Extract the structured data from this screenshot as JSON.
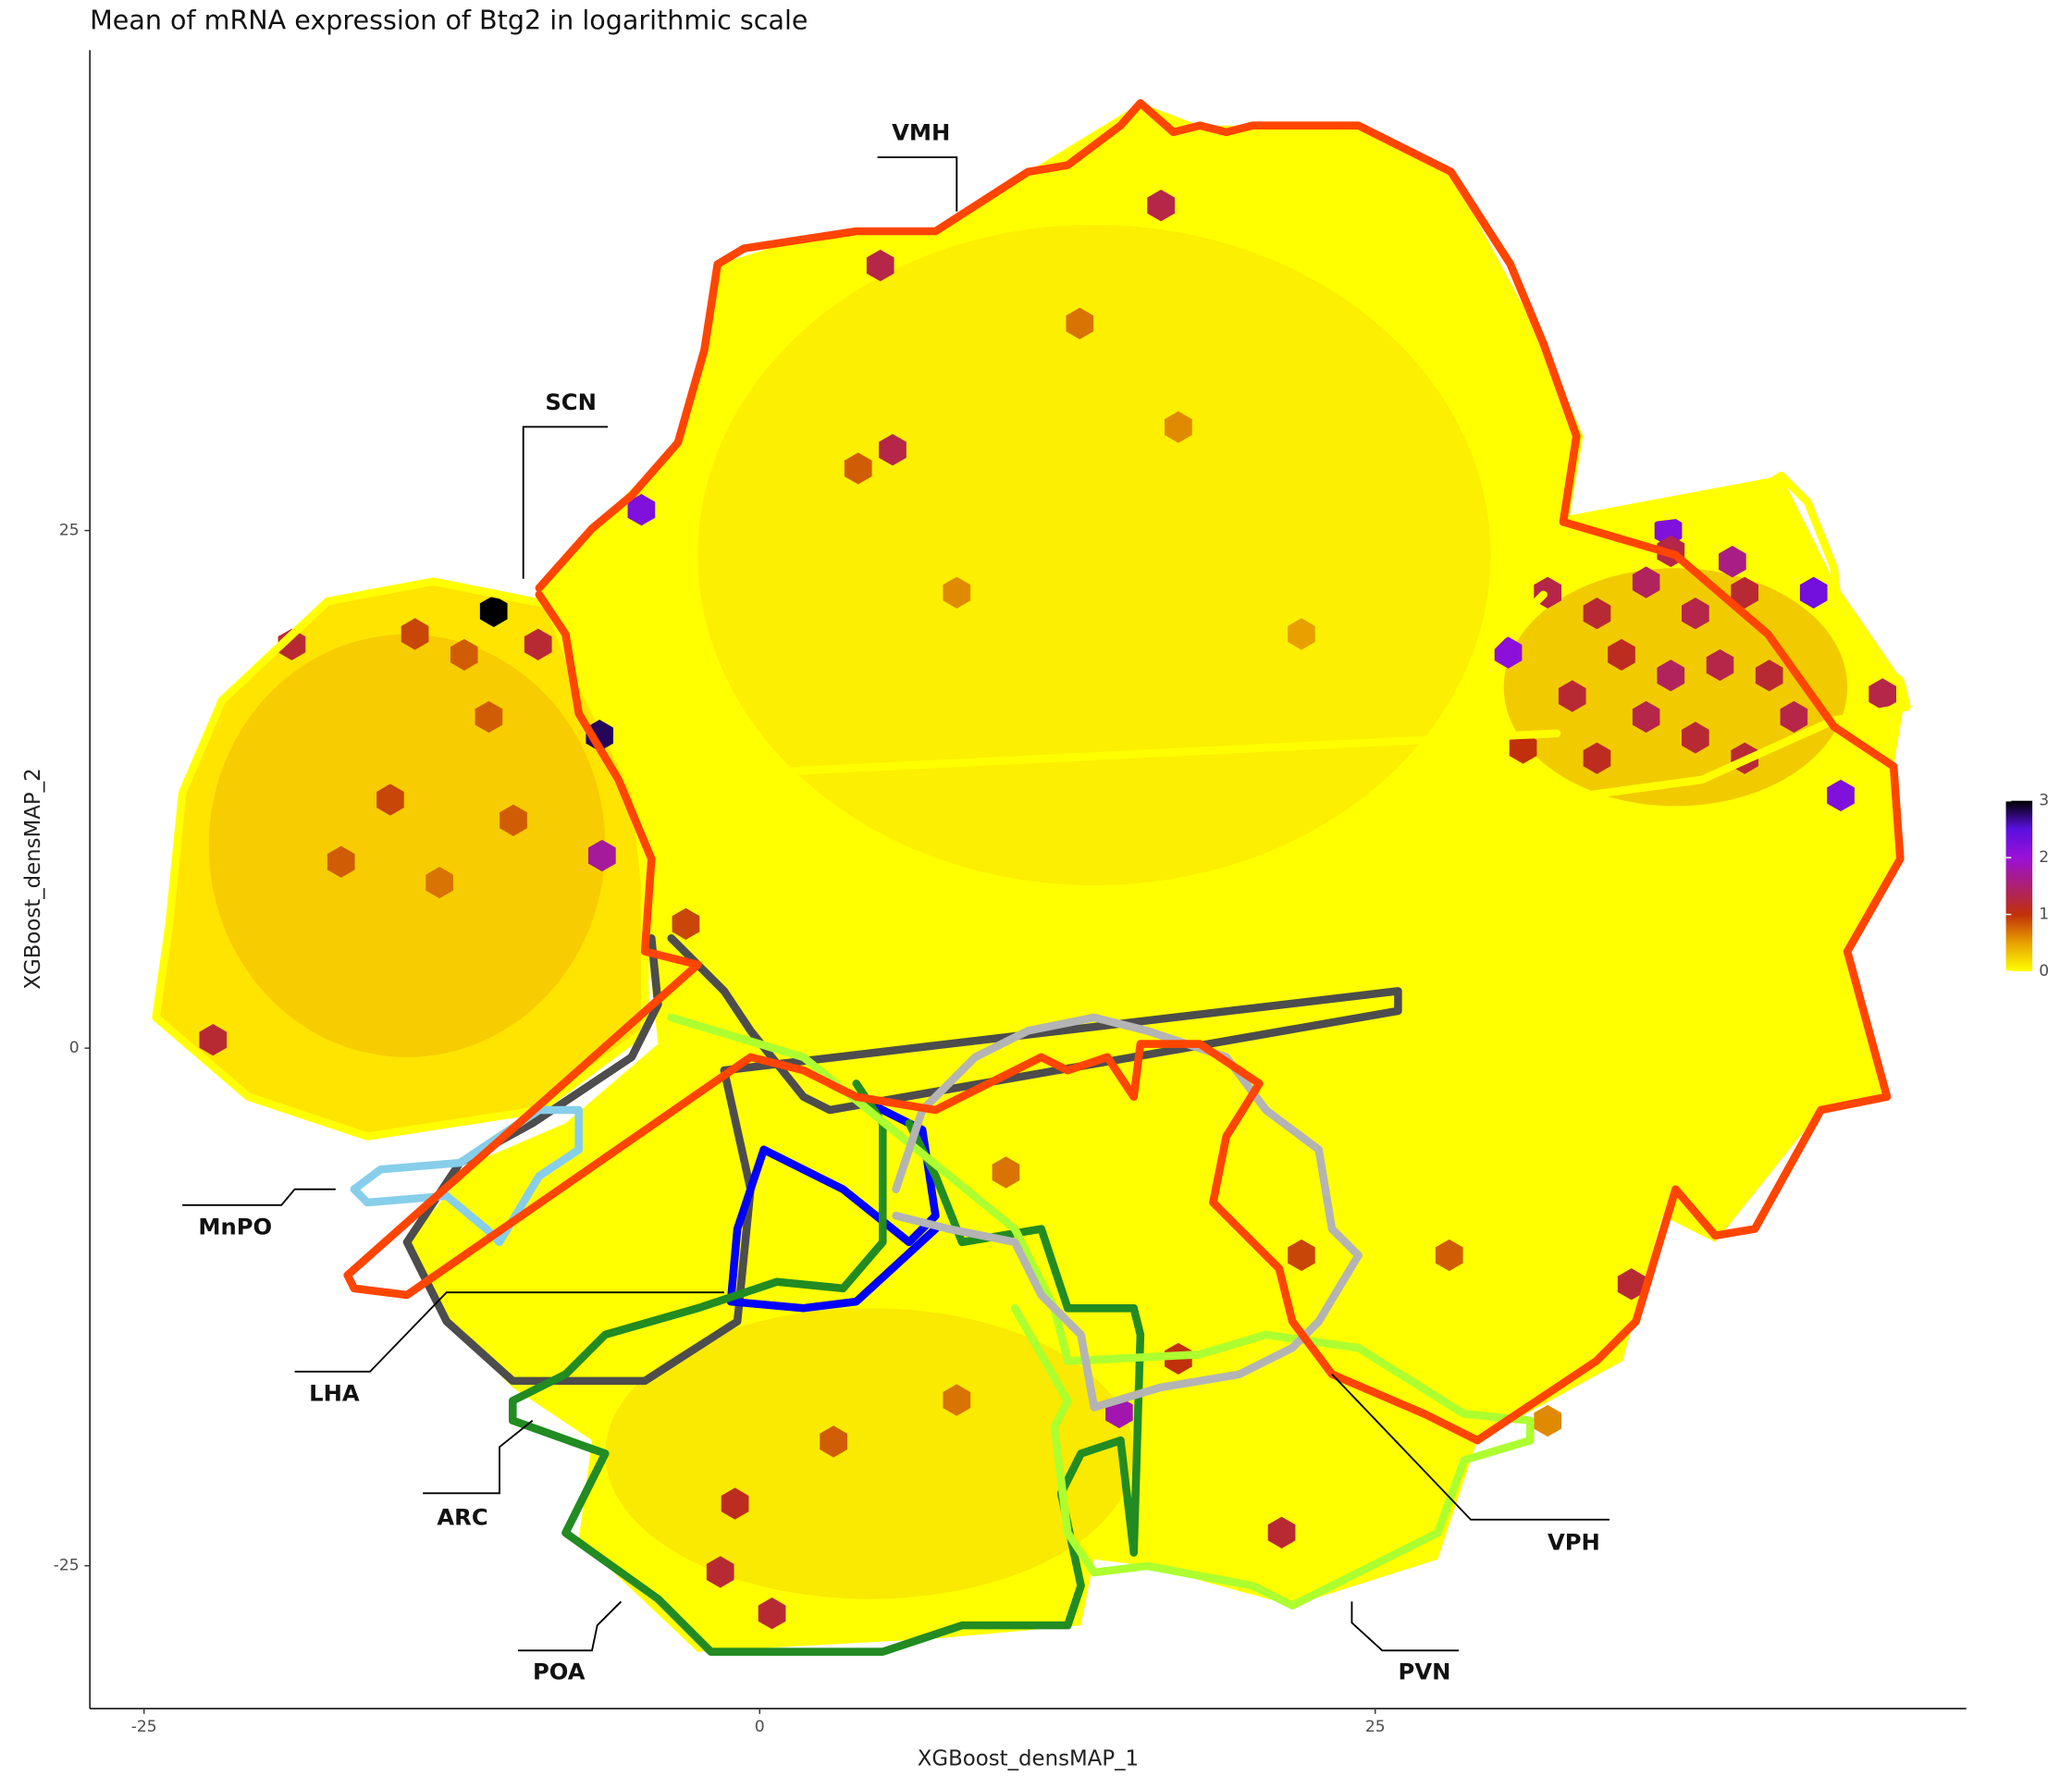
{
  "chart_data": {
    "type": "hexbin",
    "title": "Mean of mRNA expression of Btg2 in logarithmic scale",
    "x_label": "XGBoost_densMAP_1",
    "y_label": "XGBoost_densMAP_2",
    "xlim": [
      -27.2,
      49.0
    ],
    "ylim": [
      -31.9,
      48.2
    ],
    "xticks": [
      -25,
      0,
      25
    ],
    "yticks": [
      -25,
      0,
      25
    ],
    "clim": [
      0,
      3
    ],
    "colorbar_ticks": [
      0,
      1,
      2,
      3
    ],
    "color_stops": [
      {
        "value": 0,
        "color": "#ffff00"
      },
      {
        "value": 0.5,
        "color": "#e8a000"
      },
      {
        "value": 1,
        "color": "#c0300a"
      },
      {
        "value": 2,
        "color": "#9a10d8"
      },
      {
        "value": 2.5,
        "color": "#5a10e0"
      },
      {
        "value": 3,
        "color": "#000000"
      }
    ],
    "regions": [
      "VMH",
      "SCN",
      "MnPO",
      "LHA",
      "ARC",
      "POA",
      "PVN",
      "VPH"
    ],
    "x": [
      -10.8,
      -4.8,
      36.9,
      42.8,
      30.4,
      43.9,
      -6.4,
      -6.5,
      16.3,
      4.9,
      5.4,
      -22.2,
      45.6,
      35.4,
      21.2,
      -1.6,
      0.5,
      14.6,
      32,
      34,
      36,
      38,
      40,
      35,
      37,
      39,
      41,
      33,
      36,
      38,
      34,
      40,
      42,
      31,
      37,
      39.5,
      -19,
      -14,
      -11,
      -15,
      -10,
      -13,
      -17,
      -12,
      -9,
      13,
      17,
      8,
      4,
      22,
      -3,
      -1,
      3,
      8,
      17,
      22,
      10,
      28,
      32
    ],
    "y": [
      21.1,
      26.0,
      25.0,
      22.0,
      19.1,
      12.2,
      9.3,
      15.1,
      40.7,
      37.8,
      28.9,
      0.4,
      17.1,
      -11.4,
      -23.4,
      -25.3,
      -27.3,
      -17.6,
      22,
      21,
      22.5,
      21,
      22,
      19,
      18,
      18.5,
      18,
      17,
      16,
      15,
      14,
      14,
      16,
      14.5,
      24,
      23.5,
      19.5,
      20,
      16,
      12,
      11,
      8,
      9,
      19,
      19.5,
      35,
      30,
      22,
      28,
      20,
      6,
      -22,
      -19,
      -17,
      -15,
      -10,
      -6,
      -10,
      -18
    ],
    "values": [
      3.0,
      2.2,
      2.2,
      2.3,
      2.1,
      2.2,
      1.7,
      2.8,
      1.3,
      1.3,
      1.3,
      1.2,
      1.3,
      1.2,
      1.2,
      1.2,
      1.2,
      1.8,
      1.3,
      1.2,
      1.4,
      1.3,
      1.2,
      1.1,
      1.4,
      1.3,
      1.2,
      1.2,
      1.3,
      1.2,
      1.1,
      1.2,
      1.3,
      1.0,
      1.3,
      1.6,
      1.2,
      0.9,
      0.8,
      0.9,
      0.8,
      0.7,
      0.8,
      0.8,
      1.2,
      0.7,
      0.6,
      0.6,
      0.8,
      0.5,
      0.9,
      1.1,
      0.8,
      0.7,
      1.0,
      0.9,
      0.7,
      0.8,
      0.6
    ]
  }
}
